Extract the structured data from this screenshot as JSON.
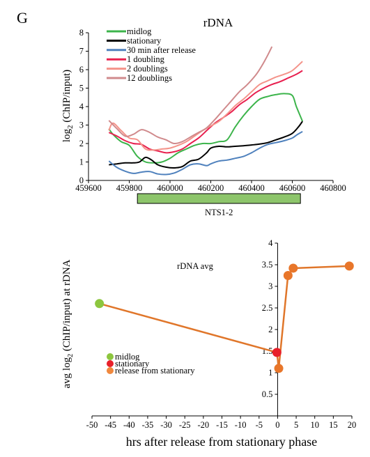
{
  "panel_label": "G",
  "chart_data": [
    {
      "type": "line",
      "title": "rDNA",
      "ylabel_main": "log",
      "ylabel_sub": "2",
      "ylabel_rest": " (ChIP/input)",
      "xlabel": "",
      "xlim": [
        459600,
        460800
      ],
      "ylim": [
        0,
        8
      ],
      "xticks": [
        459600,
        459800,
        460000,
        460200,
        460400,
        460600,
        460800
      ],
      "yticks": [
        0,
        1,
        2,
        3,
        4,
        5,
        6,
        7,
        8
      ],
      "annotation": {
        "label": "NTS1-2",
        "start": 459840,
        "end": 460640,
        "color": "#8dc56b"
      },
      "legend_position": "top-left",
      "series": [
        {
          "name": "midlog",
          "color": "#3cb44b",
          "x": [
            459700,
            459720,
            459760,
            459800,
            459840,
            459880,
            459920,
            459960,
            460000,
            460040,
            460080,
            460120,
            460160,
            460200,
            460240,
            460280,
            460320,
            460360,
            460400,
            460440,
            460480,
            460520,
            460560,
            460600,
            460620,
            460650
          ],
          "y": [
            2.8,
            2.5,
            2.1,
            1.9,
            1.3,
            1.0,
            0.95,
            1.0,
            1.2,
            1.5,
            1.7,
            1.9,
            2.0,
            2.0,
            2.1,
            2.2,
            2.9,
            3.5,
            4.0,
            4.4,
            4.55,
            4.65,
            4.7,
            4.6,
            4.0,
            3.2
          ]
        },
        {
          "name": "stationary",
          "color": "#000000",
          "x": [
            459700,
            459740,
            459780,
            459820,
            459850,
            459880,
            459910,
            459940,
            459980,
            460020,
            460060,
            460100,
            460140,
            460180,
            460200,
            460240,
            460280,
            460320,
            460360,
            460400,
            460440,
            460480,
            460520,
            460560,
            460600,
            460630,
            460650
          ],
          "y": [
            0.85,
            0.9,
            0.95,
            0.95,
            1.0,
            1.25,
            1.1,
            0.85,
            0.72,
            0.68,
            0.75,
            1.05,
            1.15,
            1.5,
            1.75,
            1.85,
            1.82,
            1.85,
            1.88,
            1.92,
            1.97,
            2.05,
            2.2,
            2.35,
            2.55,
            2.9,
            3.2
          ]
        },
        {
          "name": "30 min after release",
          "color": "#4f81bd",
          "x": [
            459700,
            459740,
            459780,
            459820,
            459860,
            459900,
            459940,
            459980,
            460020,
            460060,
            460100,
            460140,
            460180,
            460200,
            460240,
            460280,
            460320,
            460360,
            460400,
            460440,
            460480,
            460520,
            460560,
            460600,
            460620,
            460650
          ],
          "y": [
            1.05,
            0.7,
            0.5,
            0.38,
            0.45,
            0.48,
            0.35,
            0.32,
            0.4,
            0.6,
            0.85,
            0.9,
            0.8,
            0.9,
            1.05,
            1.1,
            1.2,
            1.3,
            1.5,
            1.75,
            1.95,
            2.05,
            2.15,
            2.3,
            2.45,
            2.65
          ]
        },
        {
          "name": "1 doubling",
          "color": "#e8204f",
          "x": [
            459700,
            459740,
            459780,
            459820,
            459860,
            459900,
            459940,
            459980,
            460020,
            460060,
            460100,
            460140,
            460180,
            460220,
            460260,
            460300,
            460340,
            460380,
            460420,
            460460,
            460500,
            460540,
            460580,
            460620,
            460650
          ],
          "y": [
            2.6,
            2.4,
            2.15,
            2.0,
            1.95,
            1.7,
            1.6,
            1.5,
            1.55,
            1.7,
            2.0,
            2.3,
            2.7,
            3.1,
            3.4,
            3.7,
            4.1,
            4.4,
            4.75,
            5.0,
            5.2,
            5.35,
            5.55,
            5.75,
            5.95
          ]
        },
        {
          "name": "2 doublings",
          "color": "#f4938a",
          "x": [
            459700,
            459720,
            459760,
            459800,
            459840,
            459880,
            459920,
            459960,
            460000,
            460040,
            460080,
            460120,
            460160,
            460200,
            460240,
            460280,
            460320,
            460360,
            460400,
            460440,
            460480,
            460520,
            460560,
            460600,
            460650
          ],
          "y": [
            2.7,
            3.1,
            2.7,
            2.3,
            2.2,
            1.7,
            1.65,
            1.7,
            1.75,
            1.9,
            2.1,
            2.4,
            2.7,
            2.95,
            3.2,
            3.6,
            4.05,
            4.4,
            4.8,
            5.2,
            5.4,
            5.6,
            5.75,
            5.95,
            6.45
          ]
        },
        {
          "name": "12 doublings",
          "color": "#d08a8c",
          "x": [
            459700,
            459740,
            459780,
            459820,
            459860,
            459900,
            459940,
            459980,
            460020,
            460060,
            460100,
            460140,
            460180,
            460220,
            460260,
            460300,
            460340,
            460380,
            460420,
            460450,
            460480,
            460500
          ],
          "y": [
            3.25,
            2.8,
            2.4,
            2.5,
            2.75,
            2.6,
            2.35,
            2.2,
            2.0,
            2.1,
            2.35,
            2.6,
            2.85,
            3.3,
            3.8,
            4.3,
            4.8,
            5.2,
            5.7,
            6.2,
            6.8,
            7.25
          ]
        }
      ]
    },
    {
      "type": "line",
      "title": "rDNA avg",
      "ylabel_main": "avg  log",
      "ylabel_sub": "2",
      "ylabel_rest": " (ChIP/input)  at rDNA",
      "xlabel": "hrs after release from stationary phase",
      "xlim": [
        -50,
        20
      ],
      "ylim": [
        0,
        4
      ],
      "xticks": [
        -50,
        -45,
        -40,
        -35,
        -30,
        -25,
        -20,
        -15,
        -10,
        -5,
        0,
        5,
        10,
        15,
        20
      ],
      "yticks": [
        0.5,
        1,
        1.5,
        2,
        2.5,
        3,
        3.5,
        4
      ],
      "legend_position": "left",
      "legend": [
        {
          "name": "midlog",
          "color": "#8dc63f"
        },
        {
          "name": "stationary",
          "color": "#e8202a"
        },
        {
          "name": "release from stationary",
          "color": "#f0883e"
        }
      ],
      "connector": {
        "color": "#e0762a",
        "x": [
          -48,
          -0.2,
          0.3,
          2.8,
          4.2,
          19.3
        ],
        "y": [
          2.6,
          1.47,
          1.1,
          3.25,
          3.42,
          3.47
        ]
      },
      "points": [
        {
          "x": -48,
          "y": 2.6,
          "color": "#8dc63f"
        },
        {
          "x": 0.3,
          "y": 1.1,
          "color": "#e8762a"
        },
        {
          "x": 2.8,
          "y": 3.25,
          "color": "#e8762a"
        },
        {
          "x": 4.2,
          "y": 3.42,
          "color": "#e8762a"
        },
        {
          "x": 19.3,
          "y": 3.47,
          "color": "#e8762a"
        },
        {
          "x": -0.2,
          "y": 1.47,
          "color": "#e8202a"
        }
      ]
    }
  ]
}
